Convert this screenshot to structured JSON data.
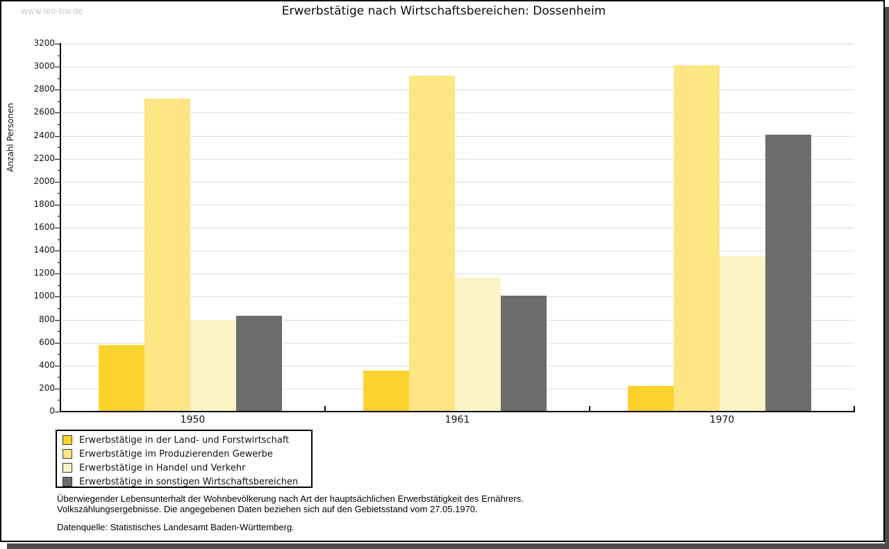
{
  "watermark": "www.leo-bw.de",
  "title": "Erwerbstätige nach Wirtschaftsbereichen: Dossenheim",
  "chart_data": {
    "type": "bar",
    "title": "Erwerbstätige nach Wirtschaftsbereichen: Dossenheim",
    "xlabel": "",
    "ylabel": "Anzahl Personen",
    "categories": [
      "1950",
      "1961",
      "1970"
    ],
    "series": [
      {
        "name": "Erwerbstätige in der Land- und Forstwirtschaft",
        "color": "#FCD32D",
        "values": [
          580,
          355,
          225
        ]
      },
      {
        "name": "Erwerbstätige im Produzierenden Gewerbe",
        "color": "#FDE584",
        "values": [
          2725,
          2925,
          3010
        ]
      },
      {
        "name": "Erwerbstätige in Handel und Verkehr",
        "color": "#FBF3C5",
        "values": [
          800,
          1165,
          1355
        ]
      },
      {
        "name": "Erwerbstätige in sonstigen Wirtschaftsbereichen",
        "color": "#6C6C6C",
        "values": [
          835,
          1010,
          2410
        ]
      }
    ],
    "ylim": [
      0,
      3200
    ],
    "ytick_step": 200,
    "yminor_step": 100,
    "grid": true,
    "legend_position": "bottom-left",
    "gridline_color": "#dedede",
    "axis_color": "#000000"
  },
  "footnote": {
    "line1": "Überwiegender Lebensunterhalt der Wohnbevölkerung nach Art der hauptsächlichen Erwerbstätigkeit des Ernährers.",
    "line2": "Volkszählungsergebnisse. Die angegebenen Daten beziehen sich auf den Gebietsstand vom 27.05.1970."
  },
  "source": "Datenquelle: Statistisches Landesamt Baden-Württemberg."
}
